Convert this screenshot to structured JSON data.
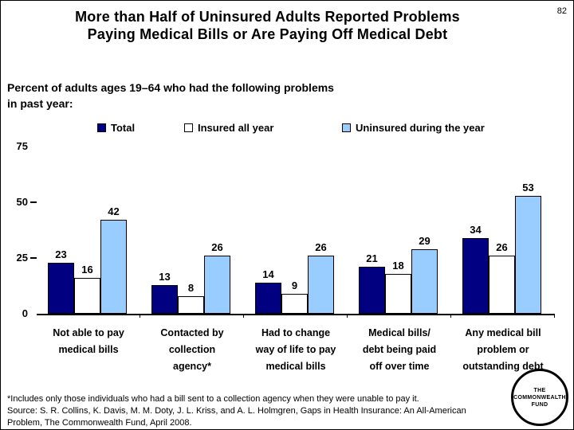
{
  "header": {
    "page_number": "82",
    "title": "More than Half of Uninsured Adults Reported Problems\nPaying Medical Bills or Are Paying Off Medical Debt",
    "subtitle": "Percent of adults ages 19–64 who had the following problems\nin past year:"
  },
  "chart_data": {
    "type": "bar",
    "title": "More than Half of Uninsured Adults Reported Problems Paying Medical Bills or Are Paying Off Medical Debt",
    "ylabel": "Percent of adults ages 19–64 who had the following problems in past year",
    "categories": [
      "Not able to pay\nmedical bills",
      "Contacted by\ncollection\nagency*",
      "Had to change\nway of life to pay\nmedical bills",
      "Medical bills/\ndebt being paid\noff over time",
      "Any medical bill\nproblem or\noutstanding debt"
    ],
    "series": [
      {
        "name": "Total",
        "color": "#000080",
        "values": [
          23,
          13,
          14,
          21,
          34
        ]
      },
      {
        "name": "Insured all year",
        "color": "#FFFFFF",
        "values": [
          16,
          8,
          9,
          18,
          26
        ]
      },
      {
        "name": "Uninsured during the year",
        "color": "#99CCFF",
        "values": [
          42,
          26,
          26,
          29,
          53
        ]
      }
    ],
    "ylim": [
      0,
      75
    ],
    "yticks": [
      0,
      25,
      50,
      75
    ],
    "grid": false,
    "value_labels": true,
    "legend_position": "top"
  },
  "footer": {
    "lines": [
      "*Includes only those individuals who had a bill sent to a collection agency when they were unable to pay it.",
      "Source: S. R. Collins, K. Davis, M. M. Doty, J. L. Kriss, and A. L. Holmgren, Gaps in Health Insurance: An All-American",
      "Problem, The Commonwealth Fund, April 2008."
    ]
  },
  "logo": {
    "lines": [
      "THE",
      "COMMONWEALTH",
      "FUND"
    ]
  }
}
